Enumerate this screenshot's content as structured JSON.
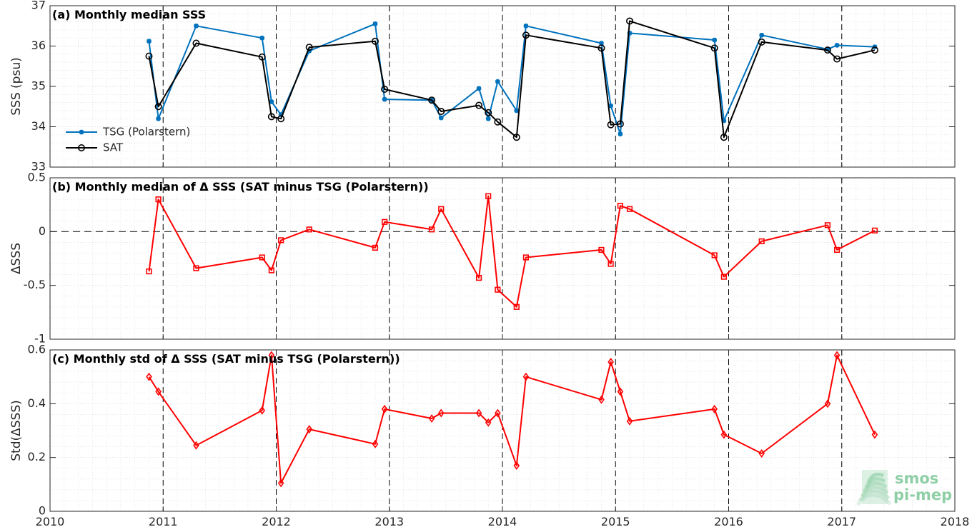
{
  "colors": {
    "tsg": "#0072BD",
    "sat": "#000000",
    "delta": "#FF0000",
    "grid": "#d9d9d9",
    "year_line": "#000000"
  },
  "logo": {
    "line1": "smos",
    "line2": "pi-mep",
    "color": "#8fcfa6"
  },
  "chart_data": [
    {
      "id": "a",
      "type": "line",
      "title": "(a) Monthly median SSS",
      "ylabel": "SSS (psu)",
      "xlim": [
        2010,
        2018
      ],
      "ylim": [
        33,
        37
      ],
      "yticks": [
        33,
        34,
        35,
        36,
        37
      ],
      "ytick_labels": [
        "33",
        "34",
        "35",
        "36",
        "37"
      ],
      "grid": true,
      "legend": {
        "position": "bottom-left"
      },
      "series": [
        {
          "name": "TSG (Polarstern)",
          "color": "#0072BD",
          "marker": "asterisk",
          "x": [
            2010.875,
            2010.958,
            2011.292,
            2011.875,
            2011.958,
            2012.042,
            2012.292,
            2012.875,
            2012.958,
            2013.375,
            2013.458,
            2013.792,
            2013.875,
            2013.958,
            2014.125,
            2014.208,
            2014.875,
            2014.958,
            2015.042,
            2015.125,
            2015.875,
            2015.958,
            2016.292,
            2016.875,
            2016.958,
            2017.292
          ],
          "y": [
            36.12,
            34.2,
            36.5,
            36.2,
            34.62,
            34.3,
            35.88,
            36.55,
            34.68,
            34.66,
            34.22,
            34.95,
            34.2,
            35.12,
            34.4,
            36.5,
            36.07,
            34.52,
            33.82,
            36.32,
            36.15,
            34.15,
            36.27,
            35.92,
            36.02,
            35.98
          ]
        },
        {
          "name": "SAT",
          "color": "#000000",
          "marker": "circle",
          "x": [
            2010.875,
            2010.958,
            2011.292,
            2011.875,
            2011.958,
            2012.042,
            2012.292,
            2012.875,
            2012.958,
            2013.375,
            2013.458,
            2013.792,
            2013.875,
            2013.958,
            2014.125,
            2014.208,
            2014.875,
            2014.958,
            2015.042,
            2015.125,
            2015.875,
            2015.958,
            2016.292,
            2016.875,
            2016.958,
            2017.292
          ],
          "y": [
            35.75,
            34.5,
            36.07,
            35.73,
            34.25,
            34.2,
            35.97,
            36.12,
            34.93,
            34.66,
            34.38,
            34.53,
            34.35,
            34.12,
            33.74,
            36.27,
            35.95,
            34.05,
            34.07,
            36.62,
            35.95,
            33.74,
            36.1,
            35.9,
            35.68,
            35.9
          ]
        }
      ]
    },
    {
      "id": "b",
      "type": "line",
      "title": "(b) Monthly median of Δ SSS (SAT minus TSG (Polarstern))",
      "ylabel": "ΔSSS",
      "xlim": [
        2010,
        2018
      ],
      "ylim": [
        -1,
        0.5
      ],
      "yticks": [
        -1,
        -0.5,
        0,
        0.5
      ],
      "ytick_labels": [
        "-1",
        "-0.5",
        "0",
        "0.5"
      ],
      "grid": true,
      "zero_line": true,
      "series": [
        {
          "color": "#FF0000",
          "marker": "square",
          "x": [
            2010.875,
            2010.958,
            2011.292,
            2011.875,
            2011.958,
            2012.042,
            2012.292,
            2012.875,
            2012.958,
            2013.375,
            2013.458,
            2013.792,
            2013.875,
            2013.958,
            2014.125,
            2014.208,
            2014.875,
            2014.958,
            2015.042,
            2015.125,
            2015.875,
            2015.958,
            2016.292,
            2016.875,
            2016.958,
            2017.292
          ],
          "y": [
            -0.37,
            0.3,
            -0.34,
            -0.24,
            -0.36,
            -0.08,
            0.02,
            -0.15,
            0.09,
            0.02,
            0.21,
            -0.43,
            0.33,
            -0.54,
            -0.7,
            -0.24,
            -0.17,
            -0.3,
            0.24,
            0.21,
            -0.22,
            -0.42,
            -0.09,
            0.06,
            -0.17,
            0.01
          ]
        }
      ]
    },
    {
      "id": "c",
      "type": "line",
      "title": "(c) Monthly std of Δ SSS (SAT minus TSG (Polarstern))",
      "ylabel": "Std(ΔSSS)",
      "xlim": [
        2010,
        2018
      ],
      "ylim": [
        0,
        0.6
      ],
      "yticks": [
        0,
        0.2,
        0.4,
        0.6
      ],
      "ytick_labels": [
        "0",
        "0.2",
        "0.4",
        "0.6"
      ],
      "xticks": [
        2010,
        2011,
        2012,
        2013,
        2014,
        2015,
        2016,
        2017,
        2018
      ],
      "xtick_labels": [
        "2010",
        "2011",
        "2012",
        "2013",
        "2014",
        "2015",
        "2016",
        "2017",
        "2018"
      ],
      "grid": true,
      "series": [
        {
          "color": "#FF0000",
          "marker": "diamond",
          "x": [
            2010.875,
            2010.958,
            2011.292,
            2011.875,
            2011.958,
            2012.042,
            2012.292,
            2012.875,
            2012.958,
            2013.375,
            2013.458,
            2013.792,
            2013.875,
            2013.958,
            2014.125,
            2014.208,
            2014.875,
            2014.958,
            2015.042,
            2015.125,
            2015.875,
            2015.958,
            2016.292,
            2016.875,
            2016.958,
            2017.292
          ],
          "y": [
            0.5,
            0.445,
            0.245,
            0.375,
            0.58,
            0.105,
            0.305,
            0.25,
            0.38,
            0.345,
            0.365,
            0.365,
            0.33,
            0.365,
            0.17,
            0.5,
            0.415,
            0.555,
            0.445,
            0.335,
            0.38,
            0.285,
            0.215,
            0.4,
            0.58,
            0.285
          ]
        }
      ]
    }
  ]
}
